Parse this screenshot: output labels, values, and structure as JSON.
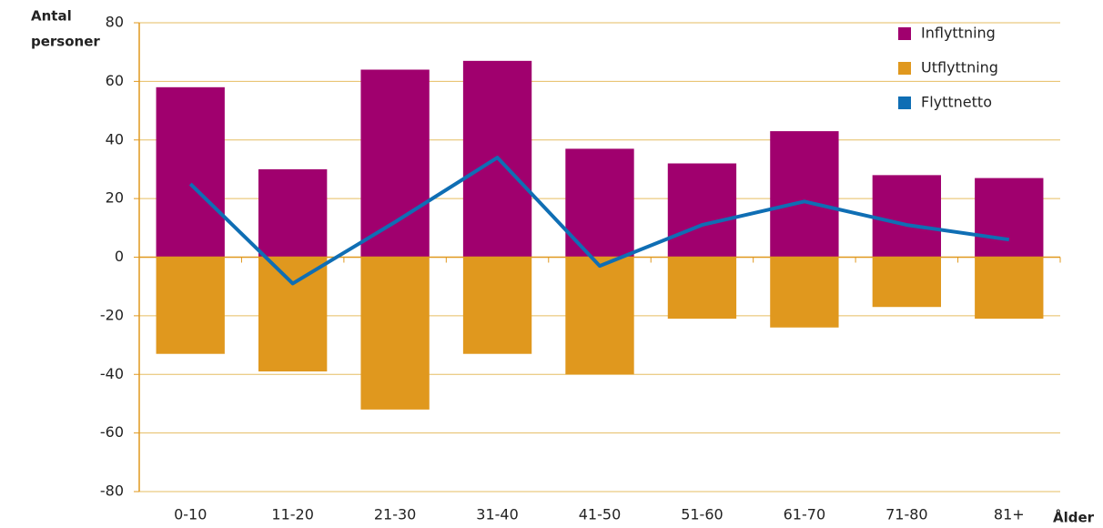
{
  "chart_data": {
    "type": "bar",
    "ylabel": [
      "Antal",
      "personer"
    ],
    "xlabel": "Ålder",
    "categories": [
      "0-10",
      "11-20",
      "21-30",
      "31-40",
      "41-50",
      "51-60",
      "61-70",
      "71-80",
      "81+"
    ],
    "series": [
      {
        "name": "Inflyttning",
        "color": "#a0006e",
        "values": [
          58,
          30,
          64,
          67,
          37,
          32,
          43,
          28,
          27
        ]
      },
      {
        "name": "Utflyttning",
        "color": "#e0981e",
        "values": [
          -33,
          -39,
          -52,
          -33,
          -40,
          -21,
          -24,
          -17,
          -21
        ]
      },
      {
        "name": "Flyttnetto",
        "type": "line",
        "color": "#0f6eb4",
        "values": [
          25,
          -9,
          12,
          34,
          -3,
          11,
          19,
          11,
          6
        ]
      }
    ],
    "ylim": [
      -80,
      80
    ],
    "yticks": [
      -80,
      -60,
      -40,
      -20,
      0,
      20,
      40,
      60,
      80
    ],
    "grid": true,
    "legend": "top-right"
  }
}
